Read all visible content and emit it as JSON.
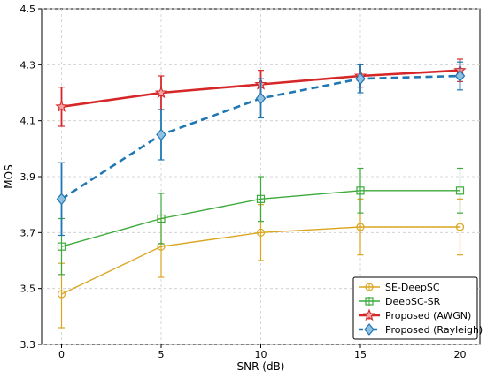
{
  "chart_data": {
    "type": "line",
    "title": "",
    "xlabel": "SNR (dB)",
    "ylabel": "MOS",
    "x": [
      0,
      5,
      10,
      15,
      20
    ],
    "xlim": [
      -1,
      21
    ],
    "ylim": [
      3.3,
      4.5
    ],
    "xticks": [
      "0",
      "5",
      "10",
      "15",
      "20"
    ],
    "yticks": [
      "3.3",
      "3.5",
      "3.7",
      "3.9",
      "4.1",
      "4.3",
      "4.5"
    ],
    "grid": true,
    "legend_position": "bottom-right",
    "series": [
      {
        "name": "SE-DeepSC",
        "color": "#DAA520",
        "marker": "circle",
        "line": "solid",
        "values": [
          3.48,
          3.65,
          3.7,
          3.72,
          3.72
        ],
        "err_low": [
          3.36,
          3.54,
          3.6,
          3.62,
          3.62
        ],
        "err_high": [
          3.59,
          3.75,
          3.8,
          3.82,
          3.82
        ]
      },
      {
        "name": "DeepSC-SR",
        "color": "#3CAA3C",
        "marker": "square",
        "line": "solid",
        "values": [
          3.65,
          3.75,
          3.82,
          3.85,
          3.85
        ],
        "err_low": [
          3.55,
          3.66,
          3.74,
          3.77,
          3.77
        ],
        "err_high": [
          3.75,
          3.84,
          3.9,
          3.93,
          3.93
        ]
      },
      {
        "name": "Proposed (AWGN)",
        "color": "#D62728",
        "marker": "star",
        "line": "solid",
        "values": [
          4.15,
          4.2,
          4.23,
          4.26,
          4.28
        ],
        "err_low": [
          4.08,
          4.14,
          4.19,
          4.22,
          4.24
        ],
        "err_high": [
          4.22,
          4.26,
          4.28,
          4.3,
          4.32
        ]
      },
      {
        "name": "Proposed (Rayleigh)",
        "color": "#1F77B4",
        "marker": "diamond",
        "line": "dashed",
        "values": [
          3.82,
          4.05,
          4.18,
          4.25,
          4.26
        ],
        "err_low": [
          3.69,
          3.96,
          4.11,
          4.2,
          4.21
        ],
        "err_high": [
          3.95,
          4.14,
          4.25,
          4.3,
          4.31
        ]
      }
    ]
  }
}
